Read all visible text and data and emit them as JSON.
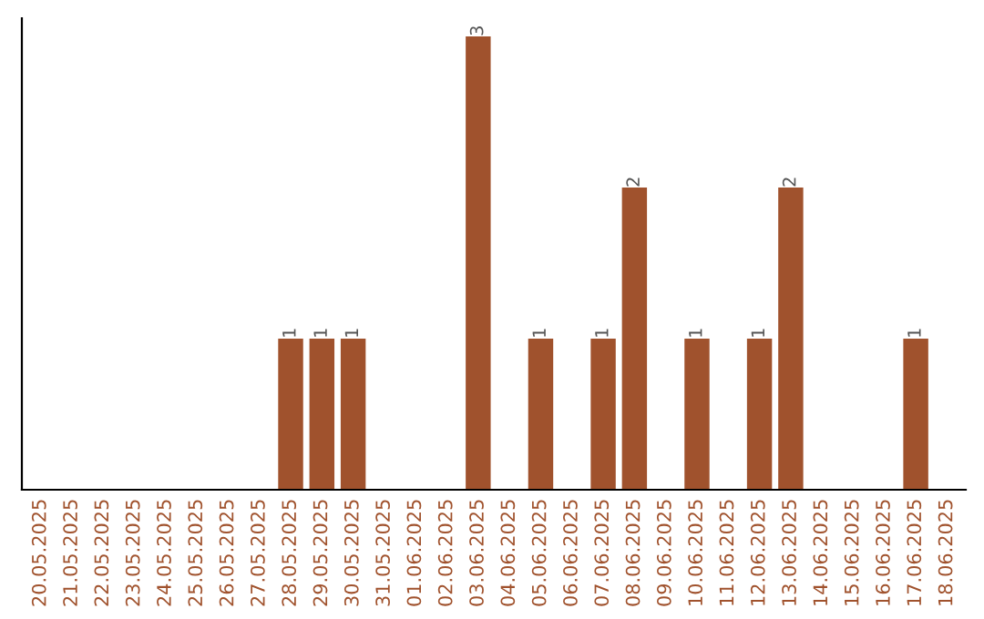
{
  "chart_data": {
    "type": "bar",
    "categories": [
      "20.05.2025",
      "21.05.2025",
      "22.05.2025",
      "23.05.2025",
      "24.05.2025",
      "25.05.2025",
      "26.05.2025",
      "27.05.2025",
      "28.05.2025",
      "29.05.2025",
      "30.05.2025",
      "31.05.2025",
      "01.06.2025",
      "02.06.2025",
      "03.06.2025",
      "04.06.2025",
      "05.06.2025",
      "06.06.2025",
      "07.06.2025",
      "08.06.2025",
      "09.06.2025",
      "10.06.2025",
      "11.06.2025",
      "12.06.2025",
      "13.06.2025",
      "14.06.2025",
      "15.06.2025",
      "16.06.2025",
      "17.06.2025",
      "18.06.2025"
    ],
    "values": [
      0,
      0,
      0,
      0,
      0,
      0,
      0,
      0,
      1,
      1,
      1,
      0,
      0,
      0,
      3,
      0,
      1,
      0,
      1,
      2,
      0,
      1,
      0,
      1,
      2,
      0,
      0,
      0,
      1,
      0
    ],
    "value_labels": [
      null,
      null,
      null,
      null,
      null,
      null,
      null,
      null,
      "1",
      "1",
      "1",
      null,
      null,
      null,
      "3",
      null,
      "1",
      null,
      "1",
      "2",
      null,
      "1",
      null,
      "1",
      "2",
      null,
      null,
      null,
      "1",
      null
    ],
    "color": "#a0522d",
    "tick_labels": "x",
    "grid": false,
    "legend": false
  }
}
